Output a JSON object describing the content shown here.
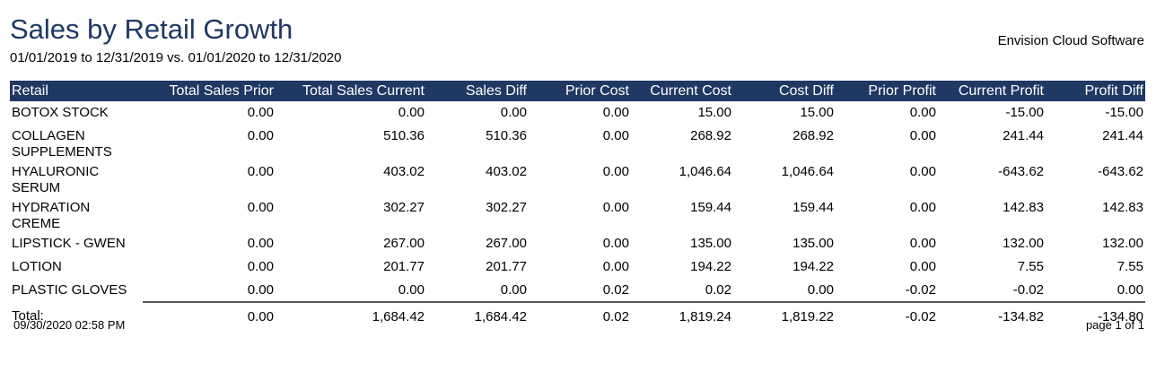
{
  "report": {
    "title": "Sales by Retail Growth",
    "date_range": "01/01/2019 to 12/31/2019  vs.  01/01/2020 to 12/31/2020",
    "company": "Envision Cloud Software"
  },
  "table": {
    "headers": [
      "Retail",
      "Total Sales Prior",
      "Total Sales Current",
      "Sales Diff",
      "Prior Cost",
      "Current Cost",
      "Cost Diff",
      "Prior Profit",
      "Current Profit",
      "Profit Diff"
    ],
    "rows": [
      [
        "BOTOX STOCK",
        "0.00",
        "0.00",
        "0.00",
        "0.00",
        "15.00",
        "15.00",
        "0.00",
        "-15.00",
        "-15.00"
      ],
      [
        "COLLAGEN SUPPLEMENTS",
        "0.00",
        "510.36",
        "510.36",
        "0.00",
        "268.92",
        "268.92",
        "0.00",
        "241.44",
        "241.44"
      ],
      [
        "HYALURONIC SERUM",
        "0.00",
        "403.02",
        "403.02",
        "0.00",
        "1,046.64",
        "1,046.64",
        "0.00",
        "-643.62",
        "-643.62"
      ],
      [
        "HYDRATION CREME",
        "0.00",
        "302.27",
        "302.27",
        "0.00",
        "159.44",
        "159.44",
        "0.00",
        "142.83",
        "142.83"
      ],
      [
        "LIPSTICK - GWEN",
        "0.00",
        "267.00",
        "267.00",
        "0.00",
        "135.00",
        "135.00",
        "0.00",
        "132.00",
        "132.00"
      ],
      [
        "LOTION",
        "0.00",
        "201.77",
        "201.77",
        "0.00",
        "194.22",
        "194.22",
        "0.00",
        "7.55",
        "7.55"
      ],
      [
        "PLASTIC GLOVES",
        "0.00",
        "0.00",
        "0.00",
        "0.02",
        "0.02",
        "0.00",
        "-0.02",
        "-0.02",
        "0.00"
      ]
    ],
    "total": [
      "Total:",
      "0.00",
      "1,684.42",
      "1,684.42",
      "0.02",
      "1,819.24",
      "1,819.22",
      "-0.02",
      "-134.82",
      "-134.80"
    ]
  },
  "footer": {
    "generated": "09/30/2020 02:58 PM",
    "page": "page 1 of 1"
  },
  "colors": {
    "title": "#1f3864",
    "header_bg": "#1f3864",
    "header_text": "#ffffff"
  }
}
